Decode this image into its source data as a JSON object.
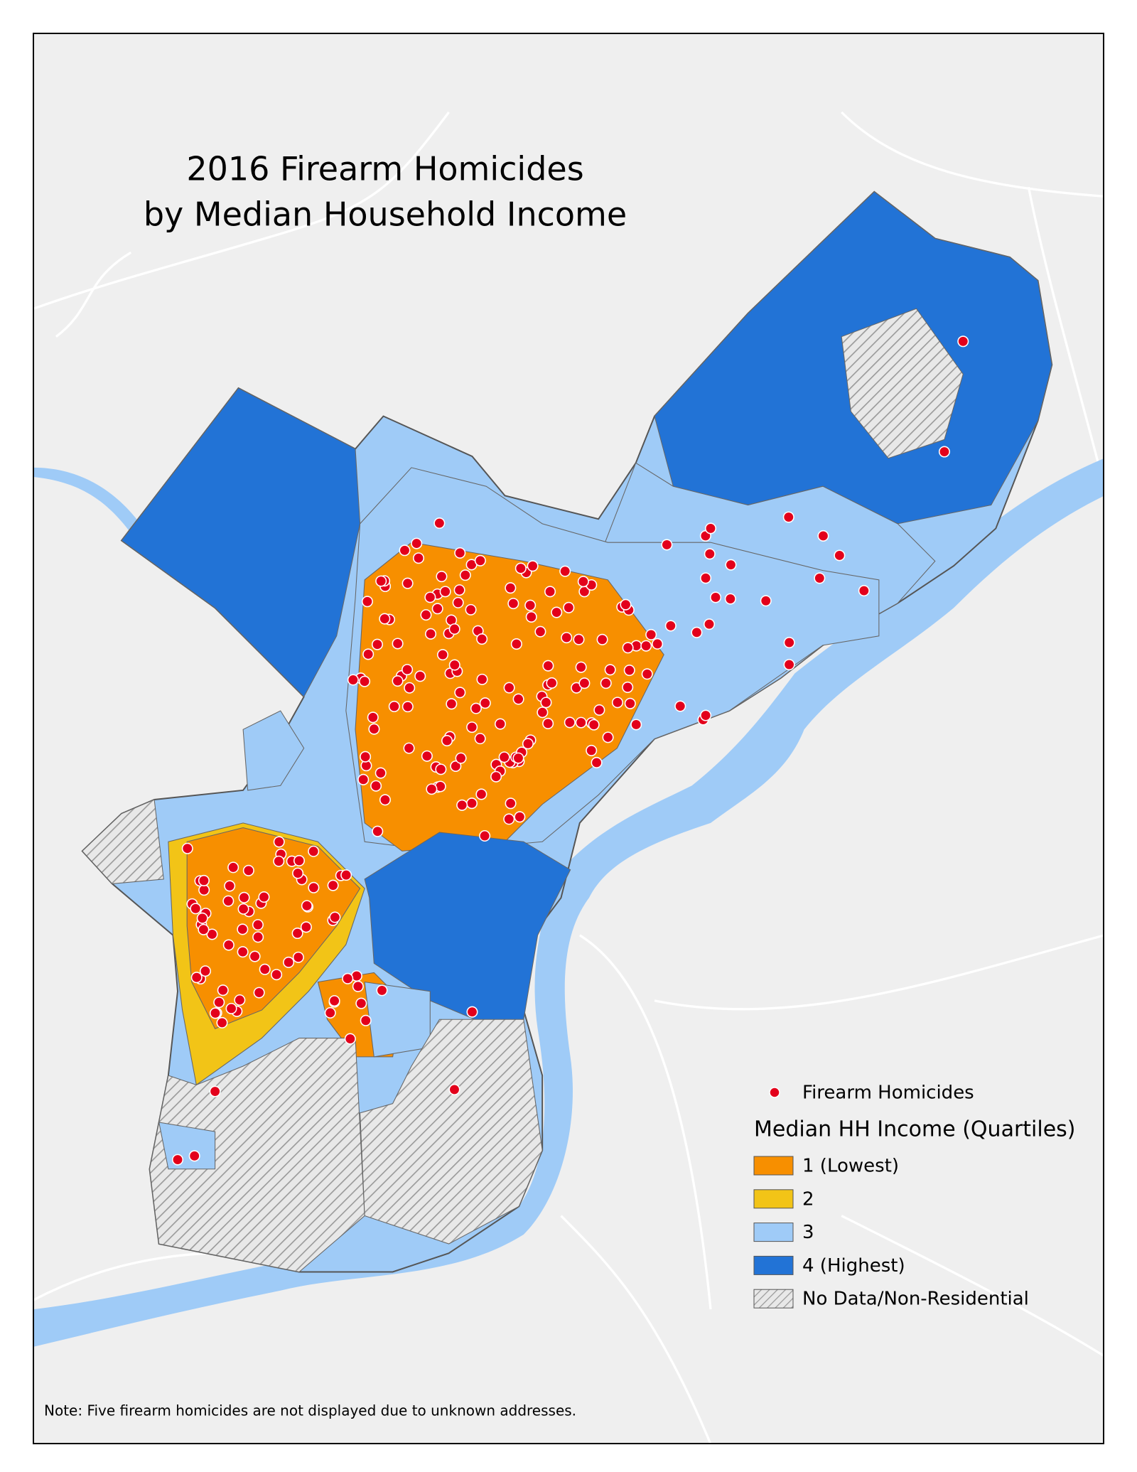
{
  "map": {
    "title": [
      "2016 Firearm Homicides",
      "by Median Household Income"
    ],
    "legend": {
      "point_label": "Firearm Homicides",
      "point_color": "#e3001b",
      "title": "Median HH Income (Quartiles)",
      "items": [
        {
          "label": "1 (Lowest)",
          "color": "#f78f00"
        },
        {
          "label": "2",
          "color": "#f2c417"
        },
        {
          "label": "3",
          "color": "#9fcbf7"
        },
        {
          "label": "4 (Highest)",
          "color": "#2273d6"
        },
        {
          "label": "No Data/Non-Residential"
        }
      ]
    },
    "note": "Note: Five firearm homicides are not displayed due to unknown addresses."
  }
}
